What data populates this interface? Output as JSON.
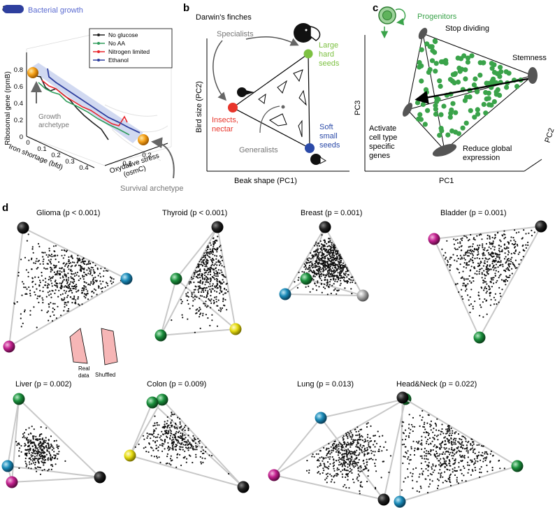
{
  "panel_labels": {
    "a": "a",
    "b": "b",
    "c": "c",
    "d": "d"
  },
  "panel_a": {
    "title": "Bacterial growth",
    "legend": [
      {
        "label": "No glucose",
        "color": "#222222"
      },
      {
        "label": "No AA",
        "color": "#2e9c5a"
      },
      {
        "label": "Nitrogen limited",
        "color": "#e8242b"
      },
      {
        "label": "Ethanol",
        "color": "#2e3f9e"
      }
    ],
    "y_axis_label": "Ribosomal gene (rpmB)",
    "y_ticks": [
      "0",
      "0.2",
      "0.4",
      "0.6",
      "0.8"
    ],
    "x_axis_label": "Iron shortage (bfd)",
    "x_ticks": [
      "0",
      "0.1",
      "0.2",
      "0.3",
      "0.4"
    ],
    "z_axis_label_1": "Oxydative stress",
    "z_axis_label_2": "(osmC)",
    "z_ticks": [
      "0.1",
      "0.2"
    ],
    "growth_label_1": "Growth",
    "growth_label_2": "archetype",
    "survival_label": "Survival archetype"
  },
  "panel_b": {
    "title": "Darwin's finches",
    "specialists": "Specialists",
    "generalists": "Generalists",
    "large_1": "Large",
    "large_2": "hard",
    "large_3": "seeds",
    "insects_1": "Insects,",
    "insects_2": "nectar",
    "soft_1": "Soft",
    "soft_2": "small",
    "soft_3": "seeds",
    "y_axis": "Bird size (PC2)",
    "x_axis": "Beak shape (PC1)",
    "colors": {
      "green": "#7dc142",
      "red": "#e8352b",
      "blue": "#2b4aa8"
    }
  },
  "panel_c": {
    "progenitors": "Progenitors",
    "stop_dividing": "Stop dividing",
    "stemness": "Stemness",
    "activate_1": "Activate",
    "activate_2": "cell type",
    "activate_3": "specific",
    "activate_4": "genes",
    "reduce_1": "Reduce global",
    "reduce_2": "expression",
    "pc1": "PC1",
    "pc2": "PC2",
    "pc3": "PC3",
    "color": "#3aa34a"
  },
  "panel_d": {
    "tumors": [
      {
        "name": "Glioma",
        "stat": "(p < 0.001)"
      },
      {
        "name": "Thyroid",
        "stat": "(p < 0.001)"
      },
      {
        "name": "Breast",
        "stat": "(p = 0.001)"
      },
      {
        "name": "Bladder",
        "stat": "(p = 0.001)"
      },
      {
        "name": "Liver",
        "stat": "(p = 0.002)"
      },
      {
        "name": "Colon",
        "stat": "(p = 0.009)"
      },
      {
        "name": "Lung",
        "stat": "(p = 0.013)"
      },
      {
        "name": "Head&Neck",
        "stat": "(p = 0.022)"
      }
    ],
    "inset_real_1": "Real",
    "inset_real_2": "data",
    "inset_shuffled": "Shuffled",
    "vertex_colors": {
      "black": "#111111",
      "blue": "#1a8ab8",
      "magenta": "#c2208e",
      "green": "#1a8f3c",
      "yellow": "#e6dc10",
      "gray": "#aaaaaa"
    }
  }
}
